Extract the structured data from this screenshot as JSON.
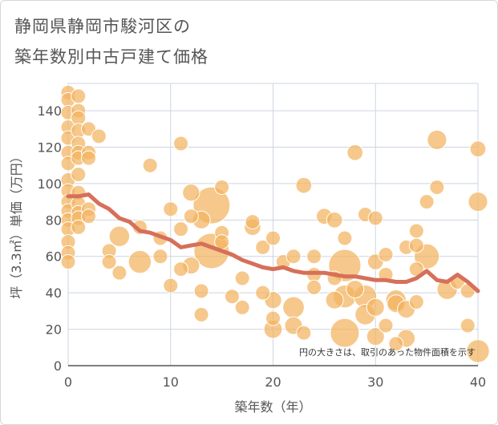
{
  "chart_data": {
    "type": "scatter",
    "title_line1": "静岡県静岡市駿河区の",
    "title_line2": "築年数別中古戸建て価格",
    "xlabel": "築年数（年）",
    "ylabel": "坪（3.3㎡）単価（万円）",
    "xlim": [
      0,
      40
    ],
    "ylim": [
      0,
      155
    ],
    "xticks": [
      0,
      10,
      20,
      30,
      40
    ],
    "yticks": [
      0,
      20,
      40,
      60,
      80,
      100,
      120,
      140
    ],
    "note": "円の大きさは、取引のあった物件面積を示す",
    "colors": {
      "bubble": "#f2b35e",
      "bubble_stroke": "#ffffff",
      "trend": "#d6705a",
      "grid": "#cdd5e0",
      "axis": "#555555"
    },
    "points": [
      {
        "x": 0,
        "y": 150,
        "s": 1
      },
      {
        "x": 0,
        "y": 146,
        "s": 1
      },
      {
        "x": 0,
        "y": 139,
        "s": 1
      },
      {
        "x": 0,
        "y": 131,
        "s": 1
      },
      {
        "x": 0,
        "y": 125,
        "s": 1
      },
      {
        "x": 0,
        "y": 117,
        "s": 1
      },
      {
        "x": 0,
        "y": 111,
        "s": 1
      },
      {
        "x": 0,
        "y": 102,
        "s": 1
      },
      {
        "x": 0,
        "y": 96,
        "s": 1
      },
      {
        "x": 0,
        "y": 90,
        "s": 1
      },
      {
        "x": 0,
        "y": 85,
        "s": 1
      },
      {
        "x": 0,
        "y": 80,
        "s": 1
      },
      {
        "x": 0,
        "y": 75,
        "s": 1
      },
      {
        "x": 0,
        "y": 68,
        "s": 1
      },
      {
        "x": 0,
        "y": 62,
        "s": 1
      },
      {
        "x": 0,
        "y": 57,
        "s": 1
      },
      {
        "x": 1,
        "y": 148,
        "s": 1
      },
      {
        "x": 1,
        "y": 140,
        "s": 1
      },
      {
        "x": 1,
        "y": 136,
        "s": 1
      },
      {
        "x": 1,
        "y": 129,
        "s": 1
      },
      {
        "x": 1,
        "y": 122,
        "s": 1
      },
      {
        "x": 1,
        "y": 117,
        "s": 1
      },
      {
        "x": 1,
        "y": 114,
        "s": 1
      },
      {
        "x": 1,
        "y": 105,
        "s": 1
      },
      {
        "x": 1,
        "y": 95,
        "s": 1
      },
      {
        "x": 1,
        "y": 89,
        "s": 1
      },
      {
        "x": 1,
        "y": 84,
        "s": 1
      },
      {
        "x": 1,
        "y": 81,
        "s": 1
      },
      {
        "x": 1,
        "y": 76,
        "s": 1
      },
      {
        "x": 2,
        "y": 130,
        "s": 1
      },
      {
        "x": 2,
        "y": 117,
        "s": 1
      },
      {
        "x": 2,
        "y": 114,
        "s": 1
      },
      {
        "x": 2,
        "y": 86,
        "s": 1
      },
      {
        "x": 2,
        "y": 82,
        "s": 1
      },
      {
        "x": 3,
        "y": 126,
        "s": 1
      },
      {
        "x": 4,
        "y": 63,
        "s": 1
      },
      {
        "x": 4,
        "y": 57,
        "s": 1
      },
      {
        "x": 5,
        "y": 71,
        "s": 2
      },
      {
        "x": 5,
        "y": 51,
        "s": 1
      },
      {
        "x": 7,
        "y": 57,
        "s": 2.5
      },
      {
        "x": 7,
        "y": 76,
        "s": 1
      },
      {
        "x": 8,
        "y": 110,
        "s": 1
      },
      {
        "x": 9,
        "y": 70,
        "s": 1
      },
      {
        "x": 9,
        "y": 60,
        "s": 1
      },
      {
        "x": 10,
        "y": 86,
        "s": 1
      },
      {
        "x": 10,
        "y": 44,
        "s": 1
      },
      {
        "x": 11,
        "y": 122,
        "s": 1
      },
      {
        "x": 11,
        "y": 75,
        "s": 1
      },
      {
        "x": 11,
        "y": 53,
        "s": 1
      },
      {
        "x": 12,
        "y": 95,
        "s": 1.4
      },
      {
        "x": 12,
        "y": 82,
        "s": 1
      },
      {
        "x": 12,
        "y": 55,
        "s": 1.4
      },
      {
        "x": 13,
        "y": 28,
        "s": 1
      },
      {
        "x": 13,
        "y": 41,
        "s": 1
      },
      {
        "x": 13,
        "y": 80,
        "s": 1.5
      },
      {
        "x": 14,
        "y": 88,
        "s": 6.5
      },
      {
        "x": 14,
        "y": 63,
        "s": 6
      },
      {
        "x": 15,
        "y": 98,
        "s": 1
      },
      {
        "x": 15,
        "y": 73,
        "s": 1
      },
      {
        "x": 15,
        "y": 68,
        "s": 1
      },
      {
        "x": 16,
        "y": 38,
        "s": 1
      },
      {
        "x": 17,
        "y": 48,
        "s": 1
      },
      {
        "x": 17,
        "y": 32,
        "s": 1
      },
      {
        "x": 18,
        "y": 79,
        "s": 1
      },
      {
        "x": 18,
        "y": 76,
        "s": 1.3
      },
      {
        "x": 19,
        "y": 65,
        "s": 1
      },
      {
        "x": 19,
        "y": 40,
        "s": 1
      },
      {
        "x": 20,
        "y": 70,
        "s": 1
      },
      {
        "x": 20,
        "y": 36,
        "s": 1.4
      },
      {
        "x": 20,
        "y": 26,
        "s": 1
      },
      {
        "x": 20,
        "y": 20,
        "s": 1.6
      },
      {
        "x": 21,
        "y": 57,
        "s": 1
      },
      {
        "x": 22,
        "y": 60,
        "s": 1
      },
      {
        "x": 22,
        "y": 32,
        "s": 2.2
      },
      {
        "x": 22,
        "y": 22,
        "s": 1.5
      },
      {
        "x": 23,
        "y": 99,
        "s": 1.2
      },
      {
        "x": 23,
        "y": 18,
        "s": 1
      },
      {
        "x": 24,
        "y": 60,
        "s": 1
      },
      {
        "x": 24,
        "y": 50,
        "s": 1
      },
      {
        "x": 24,
        "y": 43,
        "s": 1
      },
      {
        "x": 25,
        "y": 82,
        "s": 1.2
      },
      {
        "x": 26,
        "y": 80,
        "s": 1.2
      },
      {
        "x": 26,
        "y": 36,
        "s": 1.5
      },
      {
        "x": 26,
        "y": 48,
        "s": 1
      },
      {
        "x": 27,
        "y": 70,
        "s": 1
      },
      {
        "x": 27,
        "y": 55,
        "s": 5
      },
      {
        "x": 27,
        "y": 38,
        "s": 2.5
      },
      {
        "x": 27,
        "y": 18,
        "s": 4
      },
      {
        "x": 28,
        "y": 117,
        "s": 1.2
      },
      {
        "x": 28,
        "y": 42,
        "s": 1.5
      },
      {
        "x": 29,
        "y": 83,
        "s": 1
      },
      {
        "x": 29,
        "y": 38,
        "s": 2.5
      },
      {
        "x": 29,
        "y": 28,
        "s": 2
      },
      {
        "x": 30,
        "y": 81,
        "s": 1
      },
      {
        "x": 30,
        "y": 57,
        "s": 1.2
      },
      {
        "x": 30,
        "y": 32,
        "s": 1.5
      },
      {
        "x": 30,
        "y": 16,
        "s": 1.5
      },
      {
        "x": 31,
        "y": 61,
        "s": 1
      },
      {
        "x": 31,
        "y": 50,
        "s": 1
      },
      {
        "x": 31,
        "y": 22,
        "s": 1
      },
      {
        "x": 32,
        "y": 36,
        "s": 2
      },
      {
        "x": 32,
        "y": 34,
        "s": 1.5
      },
      {
        "x": 32,
        "y": 12,
        "s": 1
      },
      {
        "x": 33,
        "y": 65,
        "s": 1
      },
      {
        "x": 33,
        "y": 31,
        "s": 1.5
      },
      {
        "x": 33,
        "y": 15,
        "s": 1.5
      },
      {
        "x": 34,
        "y": 74,
        "s": 1
      },
      {
        "x": 34,
        "y": 66,
        "s": 1
      },
      {
        "x": 34,
        "y": 53,
        "s": 1
      },
      {
        "x": 34,
        "y": 35,
        "s": 1
      },
      {
        "x": 35,
        "y": 60,
        "s": 3
      },
      {
        "x": 35,
        "y": 90,
        "s": 1
      },
      {
        "x": 36,
        "y": 124,
        "s": 1.8
      },
      {
        "x": 36,
        "y": 98,
        "s": 1
      },
      {
        "x": 37,
        "y": 42,
        "s": 2
      },
      {
        "x": 38,
        "y": 46,
        "s": 1
      },
      {
        "x": 39,
        "y": 22,
        "s": 1
      },
      {
        "x": 39,
        "y": 41,
        "s": 1
      },
      {
        "x": 40,
        "y": 119,
        "s": 1.2
      },
      {
        "x": 40,
        "y": 90,
        "s": 1.8
      },
      {
        "x": 40,
        "y": 8,
        "s": 2.5
      }
    ],
    "trend": {
      "x": [
        0,
        1,
        2,
        3,
        4,
        5,
        6,
        7,
        8,
        9,
        10,
        11,
        12,
        13,
        14,
        15,
        16,
        17,
        18,
        19,
        20,
        21,
        22,
        23,
        24,
        25,
        26,
        27,
        28,
        29,
        30,
        31,
        32,
        33,
        34,
        35,
        36,
        37,
        38,
        39,
        40
      ],
      "y": [
        93,
        93,
        94,
        89,
        86,
        81,
        79,
        74,
        73,
        71,
        69,
        65,
        66,
        67,
        65,
        63,
        61,
        58,
        56,
        54,
        53,
        54,
        52,
        51,
        51,
        51,
        50,
        49,
        49,
        48,
        47,
        47,
        46,
        46,
        48,
        52,
        47,
        46,
        50,
        46,
        41
      ]
    }
  }
}
